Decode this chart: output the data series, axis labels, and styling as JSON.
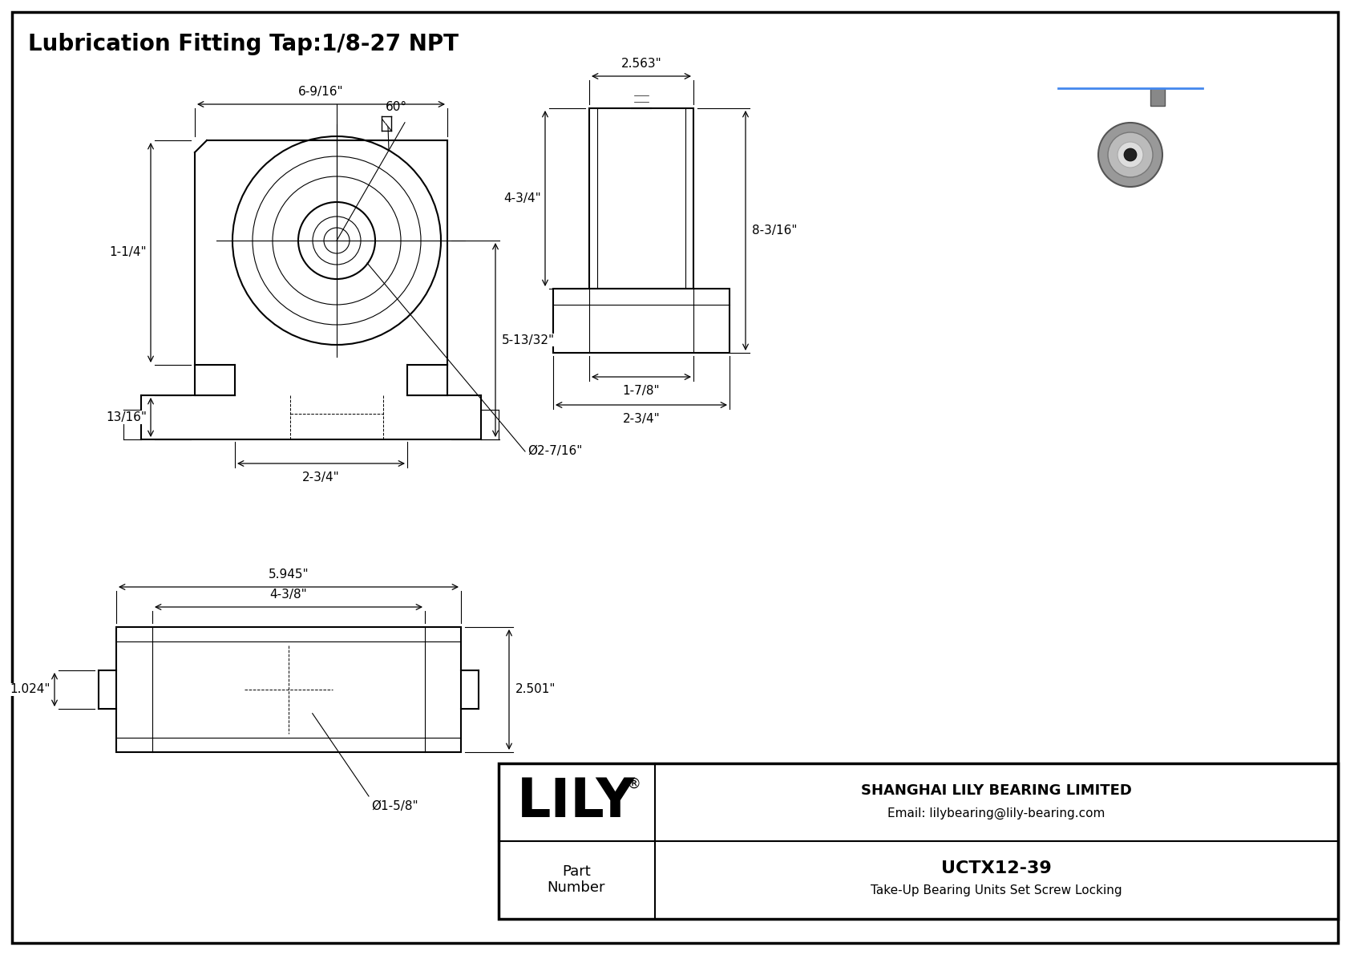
{
  "title": "Lubrication Fitting Tap:1/8-27 NPT",
  "drawing_bg": "#ffffff",
  "line_color": "#000000",
  "title_fontsize": 20,
  "dim_fontsize": 11,
  "company_name": "SHANGHAI LILY BEARING LIMITED",
  "company_email": "Email: lilybearing@lily-bearing.com",
  "part_number": "UCTX12-39",
  "part_desc": "Take-Up Bearing Units Set Screw Locking",
  "part_label": "Part\nNumber",
  "lily_text": "LILY",
  "dims_front": {
    "width": "6-9/16\"",
    "height_left": "1-1/4\"",
    "height_bottom": "13/16\"",
    "height_mid": "5-13/32\"",
    "width_bottom": "2-3/4\"",
    "bore": "Ø2-7/16\"",
    "angle": "60°"
  },
  "dims_side": {
    "width_top": "2.563\"",
    "height_total": "8-3/16\"",
    "height_upper": "4-3/4\"",
    "width_base1": "1-7/8\"",
    "width_base2": "2-3/4\""
  },
  "dims_bottom": {
    "width_outer": "5.945\"",
    "width_inner": "4-3/8\"",
    "height": "2.501\"",
    "height_left": "1.024\"",
    "bore": "Ø1-5/8\""
  }
}
